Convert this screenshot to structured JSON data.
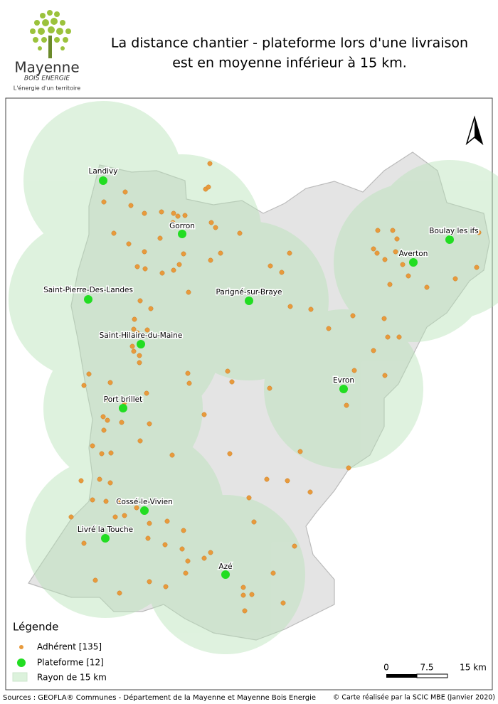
{
  "logo": {
    "name": "Mayenne",
    "sub": "BOIS ENERGIE",
    "tagline": "L'énergie d'un territoire"
  },
  "title": [
    "La distance chantier - plateforme lors d'une livraison",
    "est en moyenne inférieur à 15 km."
  ],
  "platforms": [
    "Landivy",
    "Gorron",
    "Boulay les ifs",
    "Averton",
    "Saint-Pierre-Des-Landes",
    "Parigné-sur-Braye",
    "Saint-Hilaire-du-Maine",
    "Evron",
    "Port brillet",
    "Cossé-le-Vivien",
    "Livré la Touche",
    "Azé"
  ],
  "legend": {
    "title": "Légende",
    "items": [
      "Adhérent [135]",
      "Plateforme [12]",
      "Rayon de 15 km"
    ]
  },
  "scale": [
    "0",
    "7.5",
    "15 km"
  ],
  "sources": "Sources : GEOFLA® Communes - Département de la Mayenne et Mayenne Bois Energie",
  "credit": "© Carte réalisée par la SCIC MBE (Janvier 2020)"
}
